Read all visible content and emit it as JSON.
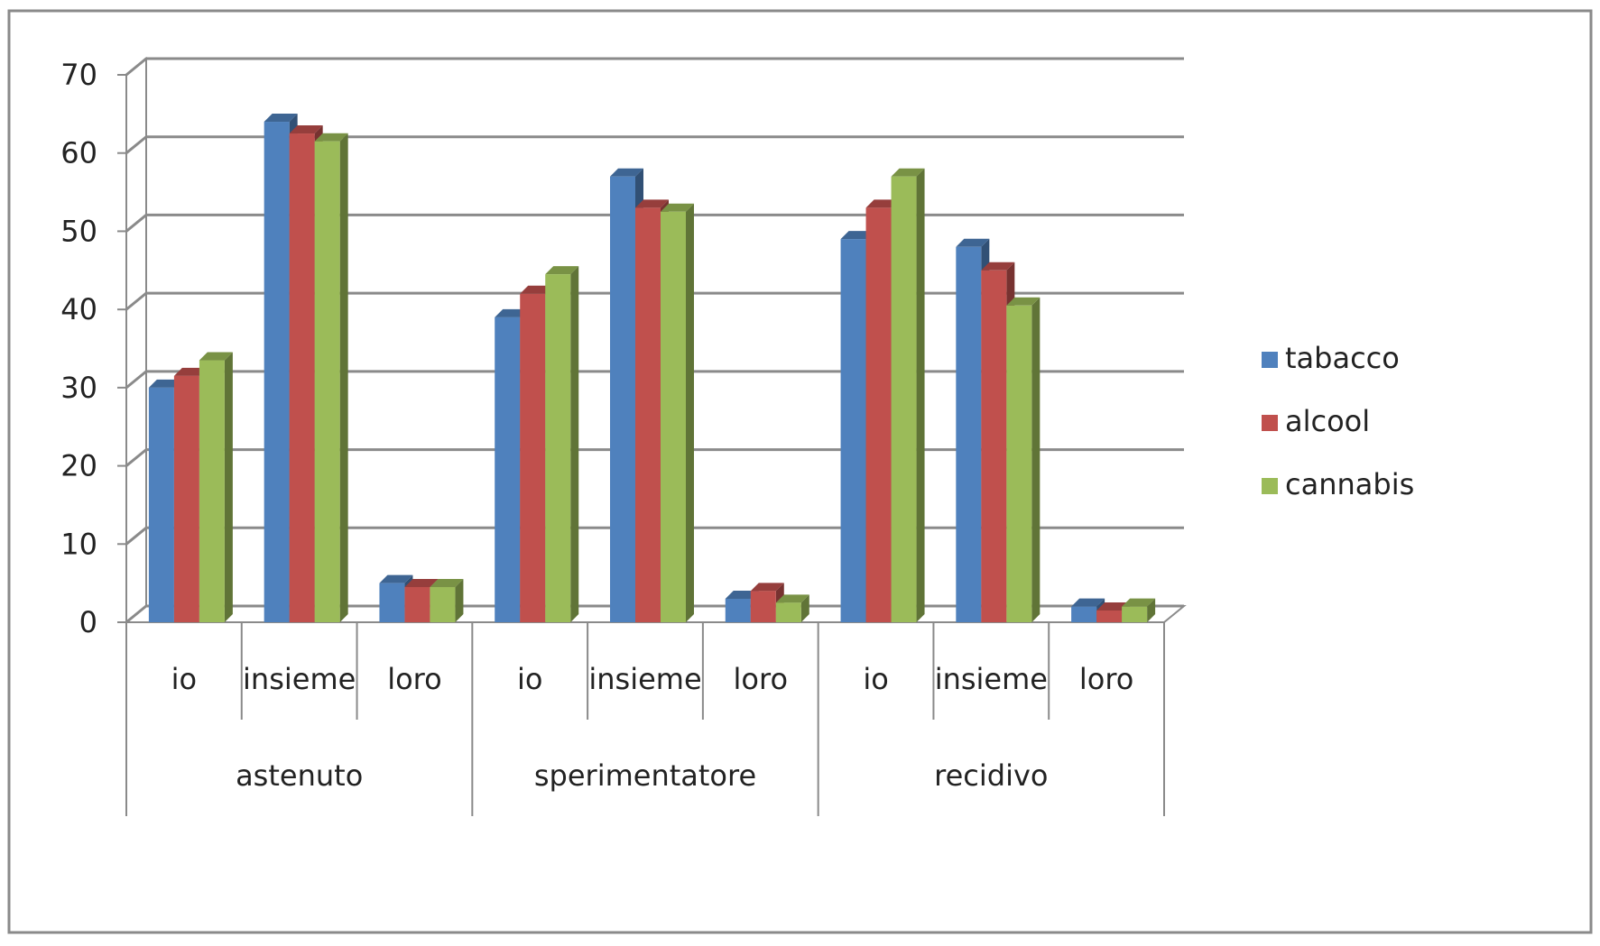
{
  "chart_data": {
    "type": "bar",
    "title": "",
    "xlabel": "",
    "ylabel": "",
    "ylim": [
      0,
      70
    ],
    "yticks": [
      "0",
      "10",
      "20",
      "30",
      "40",
      "50",
      "60",
      "70"
    ],
    "groups": [
      "astenuto",
      "sperimentatore",
      "recidivo"
    ],
    "subcategories": [
      "io",
      "insieme",
      "loro"
    ],
    "categories": [
      "io",
      "insieme",
      "loro",
      "io",
      "insieme",
      "loro",
      "io",
      "insieme",
      "loro"
    ],
    "series": [
      {
        "name": "tabacco",
        "color": "#4F81BD",
        "values": [
          30,
          64,
          5,
          39,
          57,
          3,
          49,
          48,
          2
        ]
      },
      {
        "name": "alcool",
        "color": "#C0504D",
        "values": [
          31.5,
          62.5,
          4.5,
          42,
          53,
          4,
          53,
          45,
          1.5
        ]
      },
      {
        "name": "cannabis",
        "color": "#9BBB59",
        "values": [
          33.5,
          61.5,
          4.5,
          44.5,
          52.5,
          2.5,
          57,
          40.5,
          2
        ]
      }
    ],
    "grid": true,
    "legend": "right"
  }
}
